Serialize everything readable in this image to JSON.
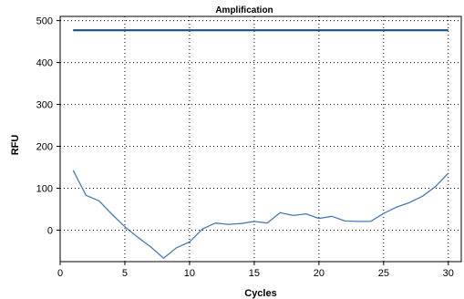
{
  "chart_data": {
    "type": "line",
    "title": "Amplification",
    "xlabel": "Cycles",
    "ylabel": "RFU",
    "xlim": [
      0,
      31
    ],
    "ylim": [
      -75,
      510
    ],
    "xticks": [
      0,
      5,
      10,
      15,
      20,
      25,
      30
    ],
    "yticks": [
      0,
      100,
      200,
      300,
      400,
      500
    ],
    "grid": true,
    "legend": "none",
    "colors": {
      "threshold": "#1f4e79",
      "curve": "#4a7ab5",
      "grid": "#000000"
    },
    "series": [
      {
        "role": "threshold",
        "x": [
          1,
          30
        ],
        "y": [
          477,
          477
        ]
      },
      {
        "role": "curve",
        "x": [
          1,
          2,
          3,
          4,
          5,
          6,
          7,
          8,
          9,
          10,
          11,
          12,
          13,
          14,
          15,
          16,
          17,
          18,
          19,
          20,
          21,
          22,
          23,
          24,
          25,
          26,
          27,
          28,
          29,
          30
        ],
        "y": [
          143,
          83,
          70,
          38,
          8,
          -17,
          -40,
          -67,
          -42,
          -28,
          3,
          17,
          14,
          16,
          21,
          17,
          42,
          35,
          39,
          28,
          33,
          22,
          21,
          21,
          40,
          55,
          66,
          81,
          104,
          136
        ]
      }
    ]
  }
}
